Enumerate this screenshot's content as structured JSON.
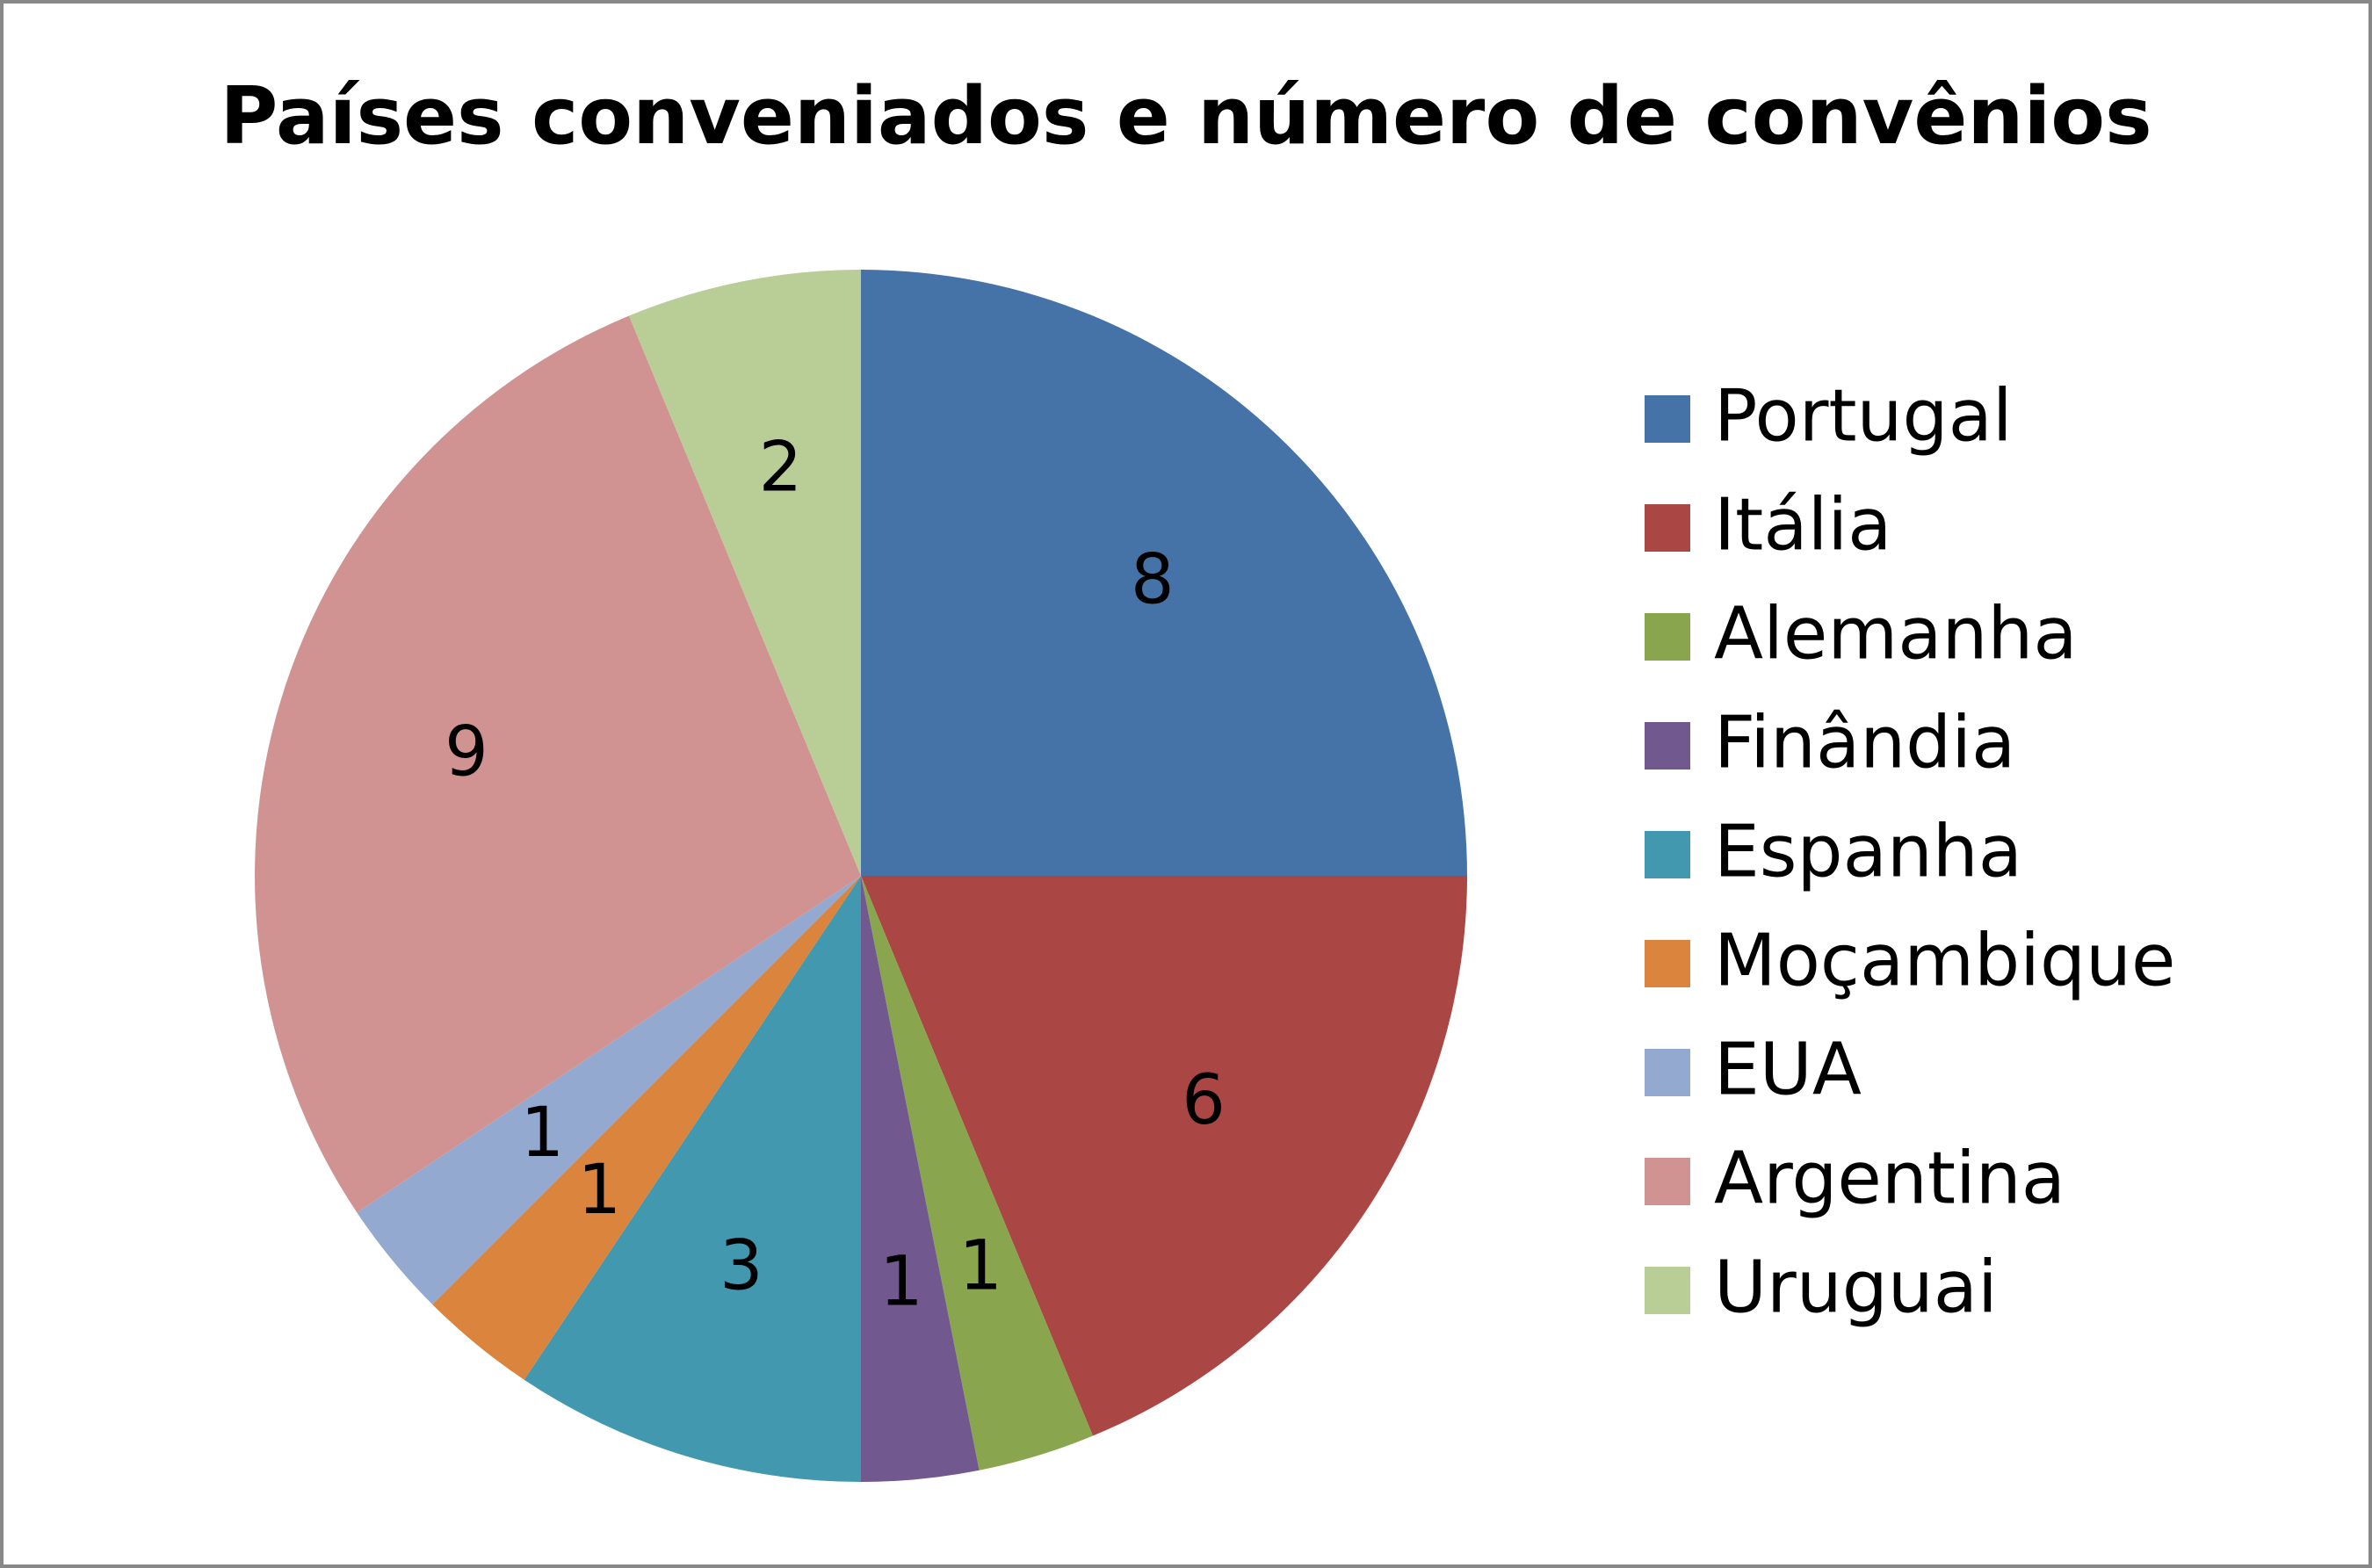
{
  "chart_data": {
    "type": "pie",
    "title": "Países conveniados e número de convênios",
    "categories": [
      "Portugal",
      "Itália",
      "Alemanha",
      "Finândia",
      "Espanha",
      "Moçambique",
      "EUA",
      "Argentina",
      "Uruguai"
    ],
    "values": [
      8,
      6,
      1,
      1,
      3,
      1,
      1,
      9,
      2
    ],
    "colors": [
      "#4572a7",
      "#aa4643",
      "#89a54e",
      "#71588f",
      "#4198af",
      "#db843d",
      "#93a9cf",
      "#d19392",
      "#b9cd96"
    ],
    "legend": "right"
  }
}
